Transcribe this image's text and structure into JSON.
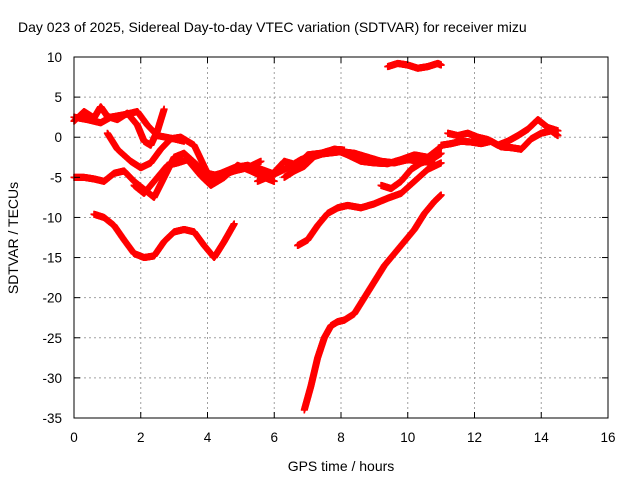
{
  "chart_data": {
    "type": "scatter",
    "title": "Day 023 of 2025, Sidereal Day-to-day VTEC variation (SDTVAR) for receiver mizu",
    "xlabel": "GPS time / hours",
    "ylabel": "SDTVAR / TECUs",
    "xlim": [
      0,
      16
    ],
    "ylim": [
      -35,
      10
    ],
    "x_ticks": [
      0,
      2,
      4,
      6,
      8,
      10,
      12,
      14,
      16
    ],
    "y_ticks": [
      -35,
      -30,
      -25,
      -20,
      -15,
      -10,
      -5,
      0,
      5,
      10
    ],
    "x_tick_labels": [
      "0",
      "2",
      "4",
      "6",
      "8",
      "10",
      "12",
      "14",
      "16"
    ],
    "y_tick_labels": [
      "-35",
      "-30",
      "-25",
      "-20",
      "-15",
      "-10",
      "-5",
      "0",
      "5",
      "10"
    ],
    "grid": true,
    "marker": "plus",
    "color": "#ff0000",
    "series": [
      {
        "x": [
          0.0,
          0.3,
          0.6,
          0.8,
          1.0,
          1.3,
          1.6,
          1.9,
          2.1,
          2.3,
          2.5,
          2.7
        ],
        "y": [
          2.0,
          3.2,
          2.4,
          3.8,
          2.6,
          2.2,
          3.0,
          1.5,
          -0.5,
          -1.0,
          0.8,
          3.5
        ]
      },
      {
        "x": [
          0.0,
          0.4,
          0.8,
          1.1,
          1.5,
          1.9,
          2.2,
          2.5,
          3.0,
          3.3
        ],
        "y": [
          2.5,
          2.2,
          1.8,
          2.5,
          2.8,
          3.2,
          1.5,
          0.2,
          -0.2,
          -0.5
        ]
      },
      {
        "x": [
          0.0,
          0.3,
          0.6,
          0.9,
          1.2,
          1.5,
          1.8,
          2.1,
          2.4,
          2.7,
          3.0,
          3.3,
          3.7,
          4.0,
          4.4,
          4.8,
          5.2,
          5.6
        ],
        "y": [
          -5.0,
          -5.0,
          -5.2,
          -5.5,
          -4.5,
          -4.2,
          -5.5,
          -6.5,
          -7.5,
          -5.0,
          -2.5,
          -2.0,
          -3.5,
          -5.5,
          -4.8,
          -4.2,
          -3.8,
          -3.0
        ]
      },
      {
        "x": [
          1.0,
          1.3,
          1.7,
          2.0,
          2.3,
          2.6,
          2.9,
          3.2,
          3.6,
          4.0,
          4.3
        ],
        "y": [
          0.5,
          -1.5,
          -3.0,
          -3.8,
          -3.2,
          -1.5,
          -0.2,
          0.0,
          -1.0,
          -4.5,
          -4.8
        ]
      },
      {
        "x": [
          1.8,
          2.1,
          2.4,
          2.8,
          3.1,
          3.4,
          3.8,
          4.1,
          4.5,
          4.9,
          5.3,
          5.7,
          6.0
        ],
        "y": [
          -6.0,
          -7.0,
          -5.5,
          -3.5,
          -3.2,
          -2.8,
          -4.8,
          -6.0,
          -5.0,
          -3.5,
          -4.2,
          -5.0,
          -5.5
        ]
      },
      {
        "x": [
          0.6,
          0.9,
          1.2,
          1.5,
          1.8,
          2.1,
          2.4,
          2.7,
          3.0,
          3.3,
          3.6,
          3.9,
          4.2,
          4.5,
          4.8
        ],
        "y": [
          -9.6,
          -10.0,
          -11.0,
          -12.8,
          -14.5,
          -15.0,
          -14.8,
          -13.0,
          -11.8,
          -11.5,
          -11.8,
          -13.5,
          -15.0,
          -13.0,
          -10.8
        ]
      },
      {
        "x": [
          4.0,
          4.4,
          4.8,
          5.2,
          5.6,
          6.0,
          6.4,
          6.8,
          7.2,
          7.6,
          8.0,
          8.4,
          8.8,
          9.2,
          9.6,
          10.0,
          10.4,
          10.8
        ],
        "y": [
          -5.0,
          -4.5,
          -3.8,
          -3.5,
          -4.0,
          -4.6,
          -3.8,
          -2.8,
          -2.2,
          -2.0,
          -1.8,
          -2.0,
          -2.5,
          -3.0,
          -3.2,
          -2.8,
          -3.0,
          -3.2
        ]
      },
      {
        "x": [
          5.5,
          5.9,
          6.3,
          6.7,
          7.0,
          7.4,
          7.8,
          8.2,
          8.6,
          9.0,
          9.4,
          9.8,
          10.2,
          10.6,
          11.0
        ],
        "y": [
          -5.5,
          -4.8,
          -3.0,
          -3.5,
          -2.2,
          -2.0,
          -1.5,
          -2.2,
          -3.0,
          -3.2,
          -3.3,
          -2.8,
          -2.2,
          -2.5,
          -1.2
        ]
      },
      {
        "x": [
          6.3,
          6.6,
          6.9,
          7.2,
          7.5,
          7.8,
          8.1
        ],
        "y": [
          -5.0,
          -4.2,
          -3.6,
          -2.4,
          -2.0,
          -1.5,
          -1.6
        ]
      },
      {
        "x": [
          6.7,
          7.0,
          7.3,
          7.6,
          7.9,
          8.2,
          8.6,
          9.0,
          9.4,
          9.8,
          10.2,
          10.6,
          11.0
        ],
        "y": [
          -13.5,
          -12.8,
          -11.0,
          -9.5,
          -8.8,
          -8.5,
          -8.8,
          -8.3,
          -7.6,
          -7.0,
          -5.5,
          -4.0,
          -3.2
        ]
      },
      {
        "x": [
          6.9,
          7.1,
          7.3,
          7.5,
          7.7,
          7.9,
          8.1,
          8.4,
          8.7,
          9.0,
          9.3,
          9.6,
          9.9,
          10.2,
          10.5,
          10.8,
          11.0
        ],
        "y": [
          -34.0,
          -31.0,
          -27.5,
          -25.0,
          -23.5,
          -23.0,
          -22.8,
          -22.0,
          -20.0,
          -18.0,
          -16.0,
          -14.5,
          -13.0,
          -11.5,
          -9.5,
          -8.0,
          -7.2
        ]
      },
      {
        "x": [
          9.2,
          9.5,
          9.8,
          10.1,
          10.4,
          10.7,
          11.0
        ],
        "y": [
          -6.0,
          -6.4,
          -5.5,
          -4.0,
          -3.2,
          -2.8,
          -2.0
        ]
      },
      {
        "x": [
          9.4,
          9.7,
          10.0,
          10.3,
          10.6,
          10.9,
          11.0
        ],
        "y": [
          8.8,
          9.2,
          9.0,
          8.6,
          8.8,
          9.2,
          9.0
        ]
      },
      {
        "x": [
          11.2,
          11.5,
          11.8,
          12.1,
          12.4,
          12.7,
          13.0,
          13.3,
          13.6,
          13.9,
          14.2,
          14.5
        ],
        "y": [
          0.5,
          0.2,
          0.5,
          0.0,
          -0.3,
          -1.0,
          -0.5,
          0.2,
          1.0,
          2.2,
          1.2,
          0.8
        ]
      },
      {
        "x": [
          11.0,
          11.3,
          11.6,
          11.9,
          12.2,
          12.5,
          12.8,
          13.1,
          13.4,
          13.7,
          14.0,
          14.3,
          14.5
        ],
        "y": [
          -1.0,
          -0.8,
          -0.5,
          -0.6,
          -0.8,
          -0.5,
          -1.2,
          -1.3,
          -1.5,
          -0.2,
          0.5,
          0.8,
          0.2
        ]
      }
    ]
  }
}
